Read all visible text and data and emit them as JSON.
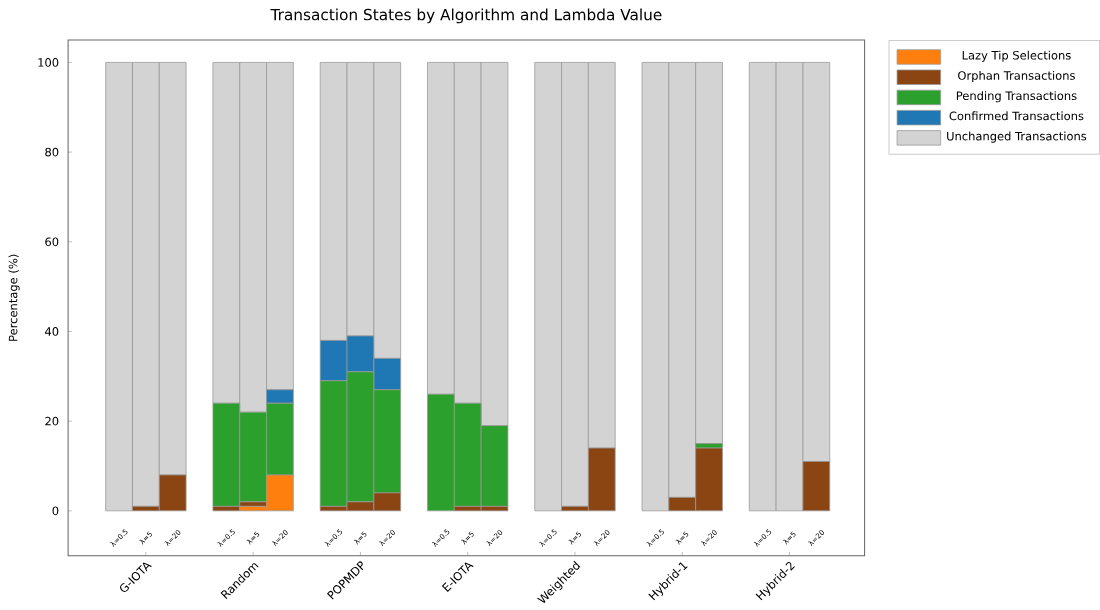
{
  "chart_data": {
    "type": "bar",
    "stacked": true,
    "title": "Transaction States by Algorithm and Lambda Value",
    "ylabel": "Percentage (%)",
    "categories": [
      "λ=0.5",
      "λ=5",
      "λ=20",
      "λ=0.5",
      "λ=5",
      "λ=20",
      "λ=0.5",
      "λ=5",
      "λ=20",
      "λ=0.5",
      "λ=5",
      "λ=20",
      "λ=0.5",
      "λ=5",
      "λ=20",
      "λ=0.5",
      "λ=5",
      "λ=20",
      "λ=0.5",
      "λ=5",
      "λ=20"
    ],
    "annotations": [
      "G-IOTA",
      "Random",
      "POPMDP",
      "E-IOTA",
      "Weighted",
      "Hybrid-1",
      "Hybrid-2"
    ],
    "series": [
      {
        "name": "Lazy Tip Selections",
        "color": "#ff7f0e",
        "values": [
          0,
          0,
          0,
          0,
          1,
          8,
          0,
          0,
          0,
          0,
          0,
          0,
          0,
          0,
          0,
          0,
          0,
          0,
          0,
          0,
          0
        ]
      },
      {
        "name": "Orphan Transactions",
        "color": "#8b4513",
        "values": [
          0,
          1,
          8,
          1,
          1,
          0,
          1,
          2,
          4,
          0,
          1,
          1,
          0,
          1,
          14,
          0,
          3,
          14,
          0,
          0,
          11
        ]
      },
      {
        "name": "Pending Transactions",
        "color": "#2ca02c",
        "values": [
          0,
          0,
          0,
          23,
          20,
          16,
          28,
          29,
          23,
          26,
          23,
          18,
          0,
          0,
          0,
          0,
          0,
          1,
          0,
          0,
          0
        ]
      },
      {
        "name": "Confirmed Transactions",
        "color": "#1f77b4",
        "values": [
          0,
          0,
          0,
          0,
          0,
          3,
          9,
          8,
          7,
          0,
          0,
          0,
          0,
          0,
          0,
          0,
          0,
          0,
          0,
          0,
          0
        ]
      },
      {
        "name": "Unchanged Transactions",
        "color": "#d3d3d3",
        "values": [
          100,
          99,
          92,
          76,
          78,
          73,
          62,
          61,
          66,
          74,
          76,
          81,
          100,
          99,
          86,
          100,
          97,
          85,
          100,
          100,
          89
        ]
      }
    ],
    "ylim": [
      -10,
      105
    ],
    "yticks": [
      0,
      20,
      40,
      60,
      80,
      100
    ],
    "grid": false,
    "legend": "top right"
  }
}
